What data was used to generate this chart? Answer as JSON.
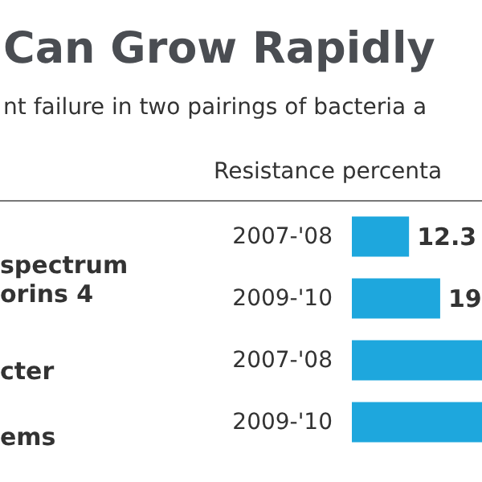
{
  "chart_data": {
    "type": "bar",
    "orientation": "horizontal",
    "title": "Can Grow Rapidly",
    "subtitle": "nt failure in two pairings of bacteria a",
    "xlabel": "Resistance percenta",
    "categories": [
      "2007-'08",
      "2009-'10",
      "2007-'08",
      "2009-'10"
    ],
    "values": [
      12.3,
      19,
      28,
      28
    ],
    "value_labels": [
      "12.3",
      "19",
      null,
      null
    ],
    "color": "#1ea7dd",
    "xlim": [
      0,
      28
    ],
    "tick_labels": "y",
    "annotations": [
      "spectrum\norins 4",
      "cter",
      "ems"
    ]
  }
}
